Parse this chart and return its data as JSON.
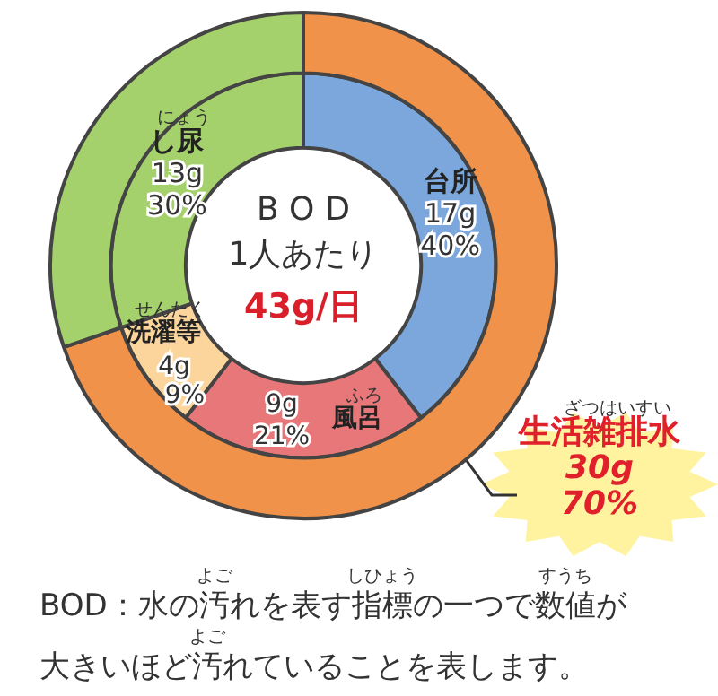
{
  "chart_data": {
    "type": "donut",
    "title": "BOD",
    "subtitle": "1人あたり",
    "annotations": [
      "43g/日",
      "BOD：水の汚れを表す指標の一つで数値が",
      "大きいほど汚れていることを表します。",
      "にょう",
      "せんたく",
      "ふろ",
      "ざつはいすい",
      "よご",
      "しひょう",
      "すうち",
      "よご"
    ],
    "series": [
      {
        "values": [
          17,
          9,
          4,
          13
        ],
        "colors": [
          "#7ba7dc",
          "#e8777a",
          "#fbd59b",
          "#a5d16c"
        ],
        "value_labels": [
          "17g\n40%",
          "9g\n21%",
          "4g\n9%",
          "13g\n30%"
        ]
      },
      {
        "name": "生活雑排水",
        "values": [
          30,
          null,
          null,
          13
        ],
        "colors": [
          "#f0924a",
          "#f0924a",
          "#f0924a",
          "#a5d16c"
        ],
        "value_labels": [
          "30g\n70%",
          null,
          null,
          null
        ]
      }
    ],
    "categories": [
      "台所",
      "風呂",
      "洗濯等",
      "し尿"
    ],
    "legend": false
  }
}
